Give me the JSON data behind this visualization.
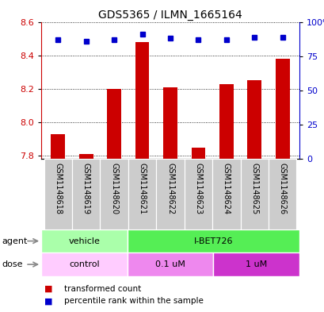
{
  "title": "GDS5365 / ILMN_1665164",
  "samples": [
    "GSM1148618",
    "GSM1148619",
    "GSM1148620",
    "GSM1148621",
    "GSM1148622",
    "GSM1148623",
    "GSM1148624",
    "GSM1148625",
    "GSM1148626"
  ],
  "bar_values": [
    7.93,
    7.81,
    8.2,
    8.48,
    8.21,
    7.85,
    8.23,
    8.25,
    8.38
  ],
  "bar_base": 7.78,
  "percentile_values": [
    87,
    86,
    87,
    91,
    88,
    87,
    87,
    89,
    89
  ],
  "bar_color": "#cc0000",
  "dot_color": "#0000cc",
  "ylim_left": [
    7.78,
    8.6
  ],
  "ylim_right": [
    0,
    100
  ],
  "yticks_left": [
    7.8,
    8.0,
    8.2,
    8.4,
    8.6
  ],
  "yticks_right": [
    0,
    25,
    50,
    75,
    100
  ],
  "ytick_labels_right": [
    "0",
    "25",
    "50",
    "75",
    "100%"
  ],
  "agent_groups": [
    {
      "label": "vehicle",
      "color": "#aaffaa",
      "start": 0,
      "end": 3
    },
    {
      "label": "I-BET726",
      "color": "#55ee55",
      "start": 3,
      "end": 9
    }
  ],
  "dose_groups": [
    {
      "label": "control",
      "color": "#ffccff",
      "start": 0,
      "end": 3
    },
    {
      "label": "0.1 uM",
      "color": "#ee88ee",
      "start": 3,
      "end": 6
    },
    {
      "label": "1 uM",
      "color": "#cc33cc",
      "start": 6,
      "end": 9
    }
  ],
  "legend_red_label": "transformed count",
  "legend_blue_label": "percentile rank within the sample",
  "background_color": "#ffffff",
  "sample_bg_color": "#cccccc",
  "tick_label_color_left": "#cc0000",
  "tick_label_color_right": "#0000cc",
  "bar_width": 0.5,
  "dot_size": 5
}
